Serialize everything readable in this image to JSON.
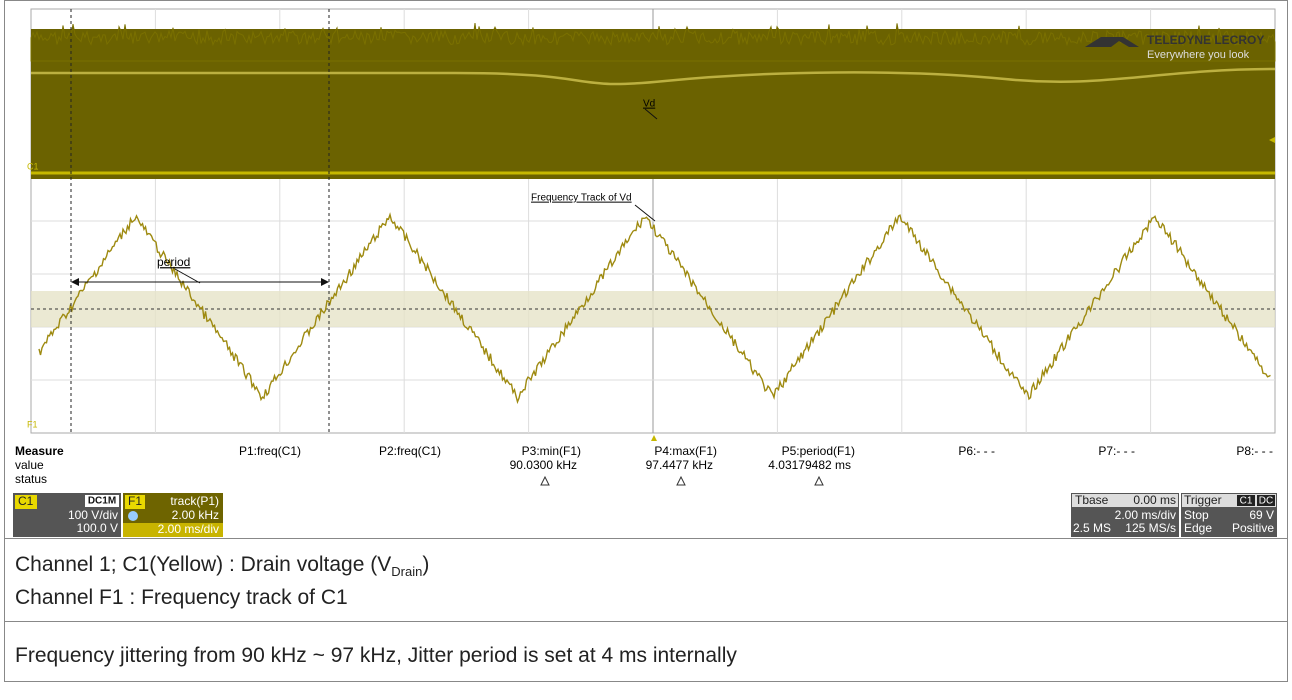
{
  "logo": {
    "brand": "TELEDYNE LECROY",
    "tagline": "Everywhere you look"
  },
  "annotations": {
    "vd": "Vd",
    "track": "Frequency Track of Vd",
    "period": "period"
  },
  "trace_labels": {
    "c1": "C1",
    "f1": "F1"
  },
  "measure": {
    "title": "Measure",
    "row_labels": [
      "value",
      "status"
    ],
    "params": [
      {
        "name": "P1:freq(C1)"
      },
      {
        "name": "P2:freq(C1)"
      },
      {
        "name": "P3:min(F1)",
        "value": "90.0300 kHz"
      },
      {
        "name": "P4:max(F1)",
        "value": "97.4477 kHz"
      },
      {
        "name": "P5:period(F1)",
        "value": "4.03179482 ms"
      },
      {
        "name": "P6:- - -"
      },
      {
        "name": "P7:- - -"
      },
      {
        "name": "P8:- - -"
      }
    ]
  },
  "channels": {
    "c1": {
      "label": "C1",
      "coupling": "DC1M",
      "scale": "100 V/div",
      "offset": "100.0 V"
    },
    "f1": {
      "label": "F1",
      "source": "track(P1)",
      "scale": "2.00 kHz",
      "timebase": "2.00 ms/div"
    }
  },
  "timebase": {
    "label": "Tbase",
    "delay": "0.00 ms",
    "scale": "2.00 ms/div",
    "samples": "2.5 MS",
    "rate": "125 MS/s"
  },
  "trigger": {
    "label": "Trigger",
    "source": "C1",
    "coupling": "DC",
    "mode": "Stop",
    "level": "69 V",
    "type": "Edge",
    "slope": "Positive"
  },
  "captions": {
    "line1": {
      "text": "Channel 1; C1(Yellow) : Drain voltage (V",
      "sub": "Drain",
      "end": ")"
    },
    "line2": "Channel F1 : Frequency track of C1",
    "line3": "Frequency jittering from 90 kHz ~ 97 kHz, Jitter period is set at 4 ms internally"
  }
}
